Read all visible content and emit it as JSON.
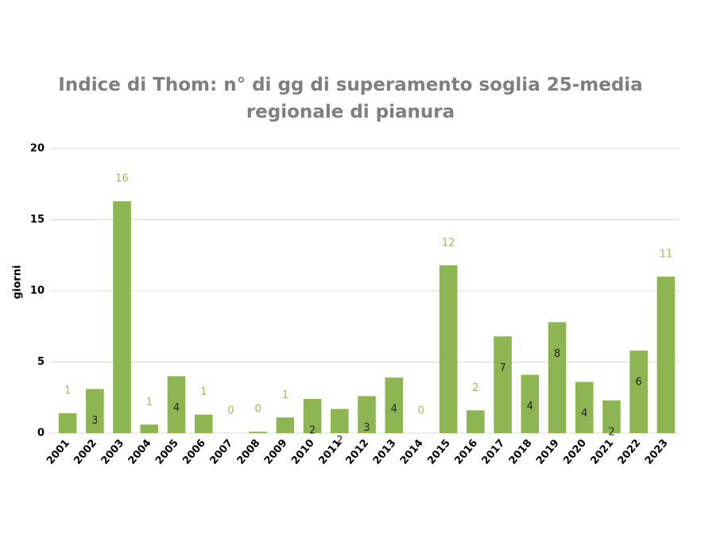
{
  "chart_data": {
    "type": "bar",
    "title": "Indice di Thom: n° di gg di superamento soglia 25-media regionale di pianura",
    "y_label": "giorni",
    "categories": [
      "2001",
      "2002",
      "2003",
      "2004",
      "2005",
      "2006",
      "2007",
      "2008",
      "2009",
      "2010",
      "2011",
      "2012",
      "2013",
      "2014",
      "2015",
      "2016",
      "2017",
      "2018",
      "2019",
      "2020",
      "2021",
      "2022",
      "2023"
    ],
    "values": [
      1.4,
      3.1,
      16.3,
      0.6,
      4.0,
      1.3,
      0,
      0.1,
      1.1,
      2.4,
      1.7,
      2.6,
      3.9,
      0,
      11.8,
      1.6,
      6.8,
      4.1,
      7.8,
      3.6,
      2.3,
      5.8,
      11.0
    ],
    "value_labels": [
      "1",
      "3",
      "16",
      "1",
      "4",
      "1",
      "0",
      "0",
      "1",
      "2",
      "2",
      "3",
      "4",
      "0",
      "12",
      "2",
      "7",
      "4",
      "8",
      "4",
      "2",
      "6",
      "11"
    ],
    "color": "#8db552",
    "ylim": [
      0,
      20
    ],
    "yticks": [
      0,
      5,
      10,
      15,
      20
    ],
    "grid": true
  }
}
